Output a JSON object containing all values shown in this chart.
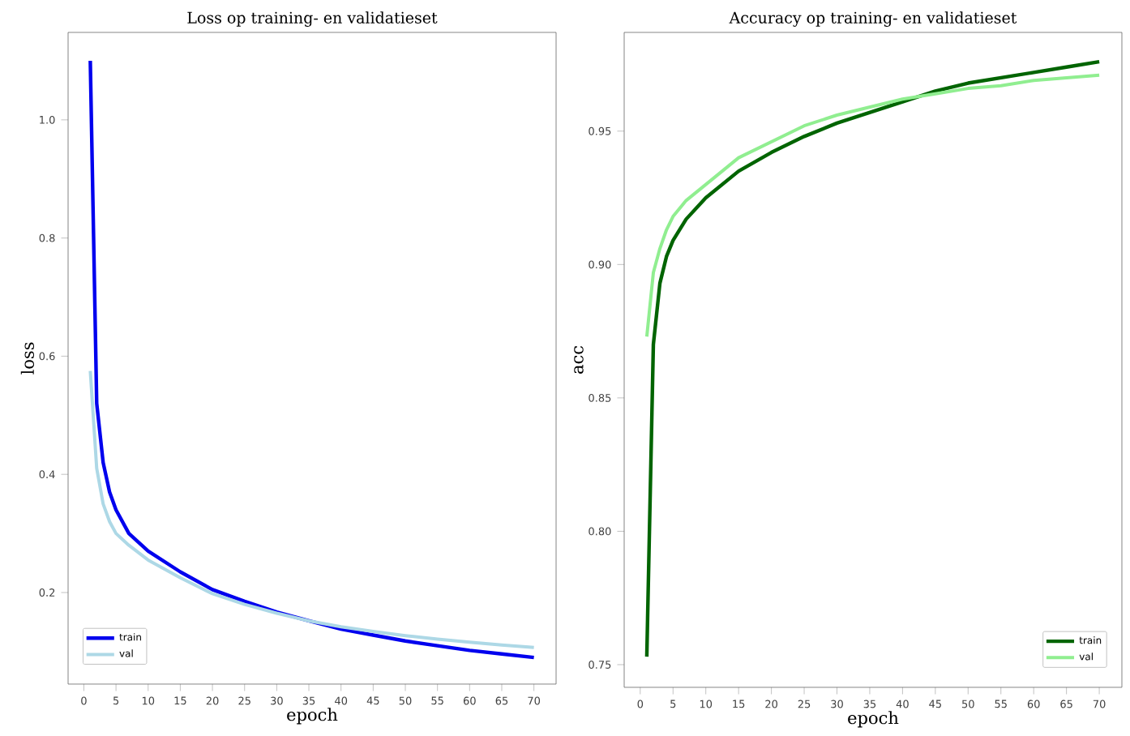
{
  "chart_data": [
    {
      "type": "line",
      "title": "Loss op training- en validatieset",
      "xlabel": "epoch",
      "ylabel": "loss",
      "legend": "bottom left",
      "x": [
        1,
        2,
        3,
        4,
        5,
        7,
        10,
        15,
        20,
        25,
        30,
        35,
        40,
        45,
        50,
        55,
        60,
        65,
        70
      ],
      "series": [
        {
          "name": "train",
          "color": "#0000ee",
          "values": [
            1.1,
            0.52,
            0.42,
            0.37,
            0.34,
            0.3,
            0.27,
            0.235,
            0.205,
            0.185,
            0.167,
            0.152,
            0.138,
            0.128,
            0.118,
            0.11,
            0.102,
            0.096,
            0.09
          ]
        },
        {
          "name": "val",
          "color": "#add8e6",
          "values": [
            0.575,
            0.41,
            0.35,
            0.32,
            0.3,
            0.28,
            0.255,
            0.225,
            0.198,
            0.18,
            0.165,
            0.152,
            0.142,
            0.134,
            0.127,
            0.121,
            0.116,
            0.111,
            0.107
          ]
        }
      ],
      "xlim": [
        -2.45,
        73.45
      ],
      "ylim": [
        0.045,
        1.148
      ],
      "xticks": [
        0,
        5,
        10,
        15,
        20,
        25,
        30,
        35,
        40,
        45,
        50,
        55,
        60,
        65,
        70
      ],
      "yticks": [
        0.2,
        0.4,
        0.6,
        0.8,
        {
          "value": 1.0,
          "label": "1.0"
        }
      ]
    },
    {
      "type": "line",
      "title": "Accuracy op training- en validatieset",
      "xlabel": "epoch",
      "ylabel": "acc",
      "legend": "bottom right",
      "x": [
        1,
        2,
        3,
        4,
        5,
        7,
        10,
        15,
        20,
        25,
        30,
        35,
        40,
        45,
        50,
        55,
        60,
        65,
        70
      ],
      "series": [
        {
          "name": "train",
          "color": "#006400",
          "values": [
            0.753,
            0.87,
            0.893,
            0.903,
            0.909,
            0.917,
            0.925,
            0.935,
            0.942,
            0.948,
            0.953,
            0.957,
            0.961,
            0.965,
            0.968,
            0.97,
            0.972,
            0.974,
            0.976
          ]
        },
        {
          "name": "val",
          "color": "#90ee90",
          "values": [
            0.873,
            0.897,
            0.906,
            0.913,
            0.918,
            0.924,
            0.93,
            0.94,
            0.946,
            0.952,
            0.956,
            0.959,
            0.962,
            0.964,
            0.966,
            0.967,
            0.969,
            0.97,
            0.971
          ]
        }
      ],
      "xlim": [
        -2.45,
        73.45
      ],
      "ylim": [
        0.7415,
        0.987
      ],
      "xticks": [
        0,
        5,
        10,
        15,
        20,
        25,
        30,
        35,
        40,
        45,
        50,
        55,
        60,
        65,
        70
      ],
      "yticks": [
        0.75,
        {
          "value": 0.8,
          "label": "0.80"
        },
        0.85,
        {
          "value": 0.9,
          "label": "0.90"
        },
        0.95
      ]
    }
  ]
}
